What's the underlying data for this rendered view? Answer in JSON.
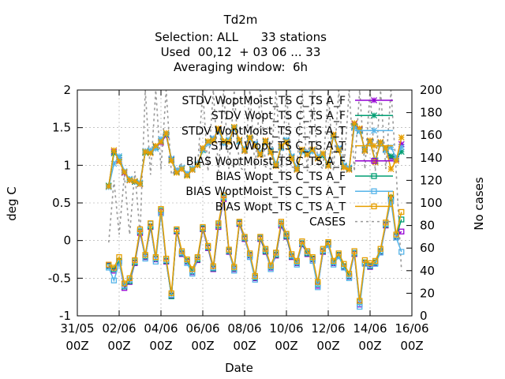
{
  "chart_data": {
    "type": "line",
    "title_lines": [
      "Td2m",
      "Selection: ALL      33 stations",
      "Used  00,12  + 03 06 ... 33",
      "Averaging window:  6h"
    ],
    "xlabel": "Date",
    "ylabel": "deg C",
    "y2label": "No cases",
    "xticks": [
      {
        "l1": "31/05",
        "l2": "00Z"
      },
      {
        "l1": "02/06",
        "l2": "00Z"
      },
      {
        "l1": "04/06",
        "l2": "00Z"
      },
      {
        "l1": "06/06",
        "l2": "00Z"
      },
      {
        "l1": "08/06",
        "l2": "00Z"
      },
      {
        "l1": "10/06",
        "l2": "00Z"
      },
      {
        "l1": "12/06",
        "l2": "00Z"
      },
      {
        "l1": "14/06",
        "l2": "00Z"
      },
      {
        "l1": "16/06",
        "l2": "00Z"
      }
    ],
    "x_range_days": [
      0,
      16
    ],
    "ylim": [
      -1,
      2
    ],
    "yticks": [
      "-1",
      "-0.5",
      "0",
      "0.5",
      "1",
      "1.5",
      "2"
    ],
    "y2lim": [
      0,
      200
    ],
    "y2ticks": [
      "0",
      "20",
      "40",
      "60",
      "80",
      "100",
      "120",
      "140",
      "160",
      "180",
      "200"
    ],
    "x_days": [
      1.5,
      1.75,
      2.0,
      2.25,
      2.5,
      2.75,
      3.0,
      3.25,
      3.5,
      3.75,
      4.0,
      4.25,
      4.5,
      4.75,
      5.0,
      5.25,
      5.5,
      5.75,
      6.0,
      6.25,
      6.5,
      6.75,
      7.0,
      7.25,
      7.5,
      7.75,
      8.0,
      8.25,
      8.5,
      8.75,
      9.0,
      9.25,
      9.5,
      9.75,
      10.0,
      10.25,
      10.5,
      10.75,
      11.0,
      11.25,
      11.5,
      11.75,
      12.0,
      12.25,
      12.5,
      12.75,
      13.0,
      13.25,
      13.5,
      13.75,
      14.0,
      14.25,
      14.5,
      14.75,
      15.0,
      15.25,
      15.5
    ],
    "series": [
      {
        "name": "STDV WoptMoist_TS C_TS A_F",
        "color": "#9400d3",
        "marker": "x",
        "axis": "y1",
        "group": "stdv",
        "values": [
          0.72,
          1.18,
          1.07,
          0.9,
          0.8,
          0.78,
          0.75,
          1.18,
          1.17,
          1.25,
          1.3,
          1.4,
          1.08,
          0.92,
          0.95,
          0.88,
          0.94,
          1.0,
          1.22,
          1.3,
          1.35,
          1.48,
          1.3,
          1.32,
          1.5,
          1.33,
          1.2,
          1.35,
          1.28,
          1.15,
          1.32,
          1.18,
          1.0,
          1.25,
          1.32,
          1.1,
          0.95,
          1.2,
          1.15,
          1.2,
          1.1,
          1.14,
          1.0,
          1.4,
          1.22,
          0.98,
          0.95,
          1.55,
          1.48,
          1.2,
          1.32,
          1.05,
          1.3,
          1.22,
          1.1,
          1.08,
          1.28
        ]
      },
      {
        "name": "STDV Wopt_TS C_TS A_F",
        "color": "#009e73",
        "marker": "x",
        "axis": "y1",
        "group": "stdv",
        "values": [
          0.73,
          1.16,
          1.1,
          0.91,
          0.81,
          0.78,
          0.76,
          1.17,
          1.18,
          1.24,
          1.32,
          1.41,
          1.07,
          0.91,
          0.96,
          0.87,
          0.95,
          1.01,
          1.2,
          1.31,
          1.34,
          1.47,
          1.31,
          1.33,
          1.5,
          1.32,
          1.21,
          1.36,
          1.27,
          1.16,
          1.31,
          1.19,
          1.01,
          1.24,
          1.33,
          1.11,
          0.96,
          1.19,
          1.16,
          1.19,
          1.11,
          1.13,
          1.01,
          1.39,
          1.21,
          0.99,
          0.96,
          1.52,
          1.46,
          1.21,
          1.31,
          1.06,
          1.29,
          1.21,
          1.12,
          1.09,
          1.18
        ]
      },
      {
        "name": "STDV WoptMoist_TS C_TS A_T",
        "color": "#56b4e9",
        "marker": "x",
        "axis": "y1",
        "group": "stdv",
        "values": [
          0.71,
          1.02,
          1.12,
          0.92,
          0.82,
          0.79,
          0.77,
          1.19,
          1.2,
          1.22,
          1.35,
          1.42,
          1.09,
          0.93,
          0.97,
          0.89,
          0.96,
          1.02,
          1.21,
          1.29,
          1.36,
          1.46,
          1.29,
          1.34,
          1.49,
          1.31,
          1.22,
          1.34,
          1.29,
          1.17,
          1.3,
          1.2,
          1.02,
          1.23,
          1.34,
          1.12,
          0.97,
          1.18,
          1.17,
          1.18,
          1.12,
          1.15,
          1.02,
          1.38,
          1.23,
          1.0,
          0.97,
          1.5,
          1.45,
          1.22,
          1.3,
          1.07,
          1.28,
          1.2,
          1.24,
          1.1,
          1.24
        ]
      },
      {
        "name": "STDV Wopt_TS C_TS A_T",
        "color": "#e69f00",
        "marker": "x",
        "axis": "y1",
        "group": "stdv",
        "values": [
          0.72,
          1.2,
          1.05,
          0.91,
          0.8,
          0.79,
          0.75,
          1.18,
          1.16,
          1.26,
          1.31,
          1.43,
          1.06,
          0.9,
          0.95,
          0.86,
          0.94,
          1.0,
          1.23,
          1.32,
          1.33,
          1.49,
          1.32,
          1.31,
          1.51,
          1.34,
          1.19,
          1.37,
          1.26,
          1.14,
          1.33,
          1.17,
          0.99,
          1.26,
          1.31,
          1.09,
          0.94,
          1.21,
          1.14,
          1.21,
          1.09,
          1.16,
          0.99,
          1.41,
          1.2,
          0.97,
          0.94,
          1.56,
          1.49,
          1.19,
          1.33,
          1.04,
          1.31,
          1.23,
          0.95,
          1.06,
          1.37
        ]
      },
      {
        "name": "BIAS WoptMoist_TS C_TS A_F",
        "color": "#9400d3",
        "marker": "square",
        "axis": "y1",
        "group": "bias",
        "values": [
          -0.33,
          -0.4,
          -0.28,
          -0.63,
          -0.55,
          -0.3,
          0.1,
          -0.22,
          0.18,
          -0.25,
          0.38,
          -0.28,
          -0.73,
          0.12,
          -0.18,
          -0.28,
          -0.42,
          -0.26,
          0.15,
          -0.1,
          -0.38,
          0.18,
          0.55,
          -0.15,
          -0.38,
          0.22,
          0.02,
          -0.2,
          -0.5,
          0.02,
          -0.15,
          -0.36,
          -0.2,
          0.2,
          0.05,
          -0.22,
          -0.3,
          -0.05,
          -0.18,
          -0.25,
          -0.6,
          -0.15,
          -0.05,
          -0.3,
          -0.2,
          -0.35,
          -0.48,
          -0.18,
          -0.85,
          -0.3,
          -0.35,
          -0.3,
          -0.15,
          0.2,
          0.55,
          0.05,
          0.12
        ]
      },
      {
        "name": "BIAS Wopt_TS C_TS A_F",
        "color": "#009e73",
        "marker": "square",
        "axis": "y1",
        "group": "bias",
        "values": [
          -0.34,
          -0.38,
          -0.27,
          -0.61,
          -0.54,
          -0.29,
          0.12,
          -0.21,
          0.19,
          -0.24,
          0.4,
          -0.27,
          -0.74,
          0.13,
          -0.17,
          -0.27,
          -0.41,
          -0.25,
          0.16,
          -0.09,
          -0.37,
          0.2,
          0.57,
          -0.14,
          -0.37,
          0.23,
          0.03,
          -0.19,
          -0.49,
          0.03,
          -0.14,
          -0.35,
          -0.19,
          0.22,
          0.06,
          -0.21,
          -0.29,
          -0.04,
          -0.17,
          -0.24,
          -0.58,
          -0.14,
          -0.04,
          -0.29,
          -0.19,
          -0.34,
          -0.47,
          -0.17,
          -0.82,
          -0.29,
          -0.34,
          -0.29,
          -0.14,
          0.21,
          0.57,
          0.06,
          0.28
        ]
      },
      {
        "name": "BIAS WoptMoist_TS C_TS A_T",
        "color": "#56b4e9",
        "marker": "square",
        "axis": "y1",
        "group": "bias",
        "values": [
          -0.36,
          -0.53,
          -0.3,
          -0.6,
          -0.52,
          -0.27,
          0.13,
          -0.24,
          0.22,
          -0.28,
          0.36,
          -0.26,
          -0.72,
          0.14,
          -0.16,
          -0.3,
          -0.44,
          -0.23,
          0.17,
          -0.08,
          -0.36,
          0.22,
          0.58,
          -0.13,
          -0.4,
          0.24,
          0.04,
          -0.22,
          -0.52,
          0.04,
          -0.12,
          -0.38,
          -0.17,
          0.23,
          0.08,
          -0.2,
          -0.32,
          -0.03,
          -0.15,
          -0.27,
          -0.62,
          -0.13,
          -0.06,
          -0.32,
          -0.21,
          -0.36,
          -0.5,
          -0.16,
          -0.88,
          -0.31,
          -0.33,
          -0.31,
          -0.16,
          0.22,
          0.52,
          0.04,
          -0.15
        ]
      },
      {
        "name": "BIAS Wopt_TS C_TS A_T",
        "color": "#e69f00",
        "marker": "square",
        "axis": "y1",
        "group": "bias",
        "values": [
          -0.32,
          -0.36,
          -0.22,
          -0.57,
          -0.5,
          -0.26,
          0.15,
          -0.19,
          0.23,
          -0.22,
          0.42,
          -0.24,
          -0.7,
          0.15,
          -0.14,
          -0.25,
          -0.38,
          -0.22,
          0.18,
          -0.07,
          -0.34,
          0.23,
          0.6,
          -0.12,
          -0.35,
          0.25,
          0.05,
          -0.17,
          -0.47,
          0.05,
          -0.11,
          -0.33,
          -0.16,
          0.25,
          0.09,
          -0.18,
          -0.27,
          -0.01,
          -0.14,
          -0.22,
          -0.55,
          -0.11,
          -0.02,
          -0.27,
          -0.17,
          -0.31,
          -0.44,
          -0.14,
          -0.8,
          -0.26,
          -0.3,
          -0.27,
          -0.11,
          0.24,
          0.62,
          0.08,
          0.38
        ]
      },
      {
        "name": "CASES",
        "color": "#999999",
        "marker": "none",
        "dash": true,
        "axis": "y2",
        "x": [
          1.5,
          1.75,
          2.0,
          2.25,
          2.5,
          2.75,
          3.0,
          3.25,
          3.5,
          3.75,
          4.0,
          4.25,
          4.5,
          4.75,
          5.0,
          5.25,
          5.5,
          5.75,
          6.0,
          6.25,
          6.5,
          6.75,
          7.0,
          7.25,
          7.5,
          7.75,
          8.0,
          8.25,
          8.5,
          8.75,
          9.0,
          9.25,
          9.5,
          9.75,
          10.0,
          10.25,
          10.5,
          10.75,
          11.0,
          11.25,
          11.5,
          11.75,
          12.0,
          12.25,
          12.5,
          12.75,
          13.0,
          13.25,
          13.5,
          13.75,
          14.0,
          14.25,
          14.5,
          14.75,
          15.0,
          15.25,
          15.5
        ],
        "values": [
          65,
          120,
          72,
          125,
          72,
          128,
          72,
          200,
          125,
          200,
          130,
          200,
          125,
          130,
          135,
          125,
          130,
          132,
          200,
          128,
          200,
          128,
          200,
          130,
          200,
          132,
          128,
          200,
          130,
          200,
          132,
          130,
          200,
          128,
          200,
          132,
          130,
          200,
          128,
          200,
          135,
          130,
          200,
          128,
          200,
          130,
          200,
          128,
          200,
          130,
          200,
          128,
          200,
          130,
          200,
          128,
          40
        ]
      }
    ],
    "legend_position": "top-right",
    "grid": true
  }
}
